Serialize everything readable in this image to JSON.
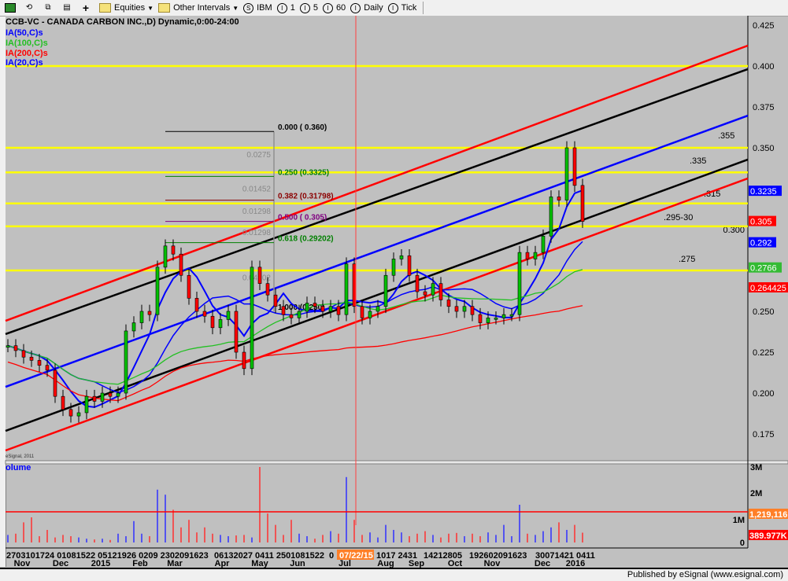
{
  "toolbar": {
    "items": [
      "Equities",
      "Other Intervals",
      "IBM",
      "1",
      "5",
      "60",
      "Daily",
      "Tick"
    ],
    "icons": [
      "link-icon",
      "refresh-icon",
      "copy-icon",
      "properties-icon",
      "plus-icon"
    ]
  },
  "chart_header": {
    "title": "CCB-VC - CANADA CARBON INC.,D) Dynamic,0:00-24:00",
    "studies": [
      {
        "label": "IA(50,C)s",
        "color": "#0000ff"
      },
      {
        "label": "IA(100,C)s",
        "color": "#22c022"
      },
      {
        "label": "IA(200,C)s",
        "color": "#ff0000"
      },
      {
        "label": "IA(20,C)s",
        "color": "#0000ff"
      }
    ],
    "watermark": "eSignal, 2011"
  },
  "chart_data": {
    "type": "candlestick",
    "ylim": [
      0.165,
      0.43
    ],
    "yticks": [
      "0.425",
      "0.400",
      "0.375",
      "0.350",
      "0.300",
      "0.250",
      "0.225",
      "0.200",
      "0.175"
    ],
    "closes": [
      0.229,
      0.226,
      0.222,
      0.22,
      0.217,
      0.214,
      0.198,
      0.19,
      0.186,
      0.188,
      0.198,
      0.195,
      0.2,
      0.198,
      0.2,
      0.238,
      0.243,
      0.25,
      0.248,
      0.277,
      0.29,
      0.285,
      0.272,
      0.258,
      0.25,
      0.247,
      0.24,
      0.245,
      0.25,
      0.225,
      0.215,
      0.277,
      0.267,
      0.26,
      0.253,
      0.248,
      0.246,
      0.25,
      0.255,
      0.253,
      0.25,
      0.253,
      0.248,
      0.279,
      0.253,
      0.246,
      0.25,
      0.253,
      0.272,
      0.282,
      0.284,
      0.272,
      0.262,
      0.26,
      0.267,
      0.257,
      0.253,
      0.25,
      0.253,
      0.248,
      0.243,
      0.246,
      0.246,
      0.248,
      0.248,
      0.286,
      0.282,
      0.286,
      0.296,
      0.32,
      0.318,
      0.35,
      0.327,
      0.305
    ],
    "moving_averages": [
      {
        "name": "MA(20,C)",
        "color": "#0000ff"
      },
      {
        "name": "MA(50,C)",
        "color": "#0000ff"
      },
      {
        "name": "MA(100,C)",
        "color": "#22c022"
      },
      {
        "name": "MA(200,C)",
        "color": "#ff0000"
      }
    ],
    "horizontal_levels": [
      0.4,
      0.35,
      0.335,
      0.316,
      0.302,
      0.275
    ],
    "level_annotations": [
      ".355",
      ".335",
      ".315",
      ".295-30",
      ".275"
    ],
    "trend_channel": [
      {
        "color": "#ff0000",
        "start": 0.2442,
        "end": 0.4125
      },
      {
        "color": "#000000",
        "start": 0.2361,
        "end": 0.3981
      },
      {
        "color": "#0000ff",
        "start": 0.2038,
        "end": 0.3697
      },
      {
        "color": "#000000",
        "start": 0.1769,
        "end": 0.3428
      },
      {
        "color": "#ff0000",
        "start": 0.1649,
        "end": 0.3313
      }
    ],
    "fibonacci": [
      {
        "label": "0.000 ( 0.360)",
        "price": 0.36,
        "color": "#000000",
        "diff": "0.0275"
      },
      {
        "label": "0.250 (0.3325)",
        "price": 0.3325,
        "color": "#008000",
        "diff": "0.01452"
      },
      {
        "label": "0.382 (0.31798)",
        "price": 0.31798,
        "color": "#8b0000",
        "diff": "0.01298"
      },
      {
        "label": "0.500 ( 0.305)",
        "price": 0.305,
        "color": "#800080",
        "diff": "0.01298"
      },
      {
        "label": "0.618 (0.29202)",
        "price": 0.29202,
        "color": "#008000",
        "diff": "0.04202"
      },
      {
        "label": "1.000 (0.250)",
        "price": 0.25,
        "color": "#000000",
        "diff": ""
      }
    ],
    "price_badges": [
      {
        "text": "0.3235",
        "bg": "#0000ff",
        "price": 0.3235
      },
      {
        "text": "0.305",
        "bg": "#ff0000",
        "price": 0.305
      },
      {
        "text": "0.292",
        "bg": "#0000ff",
        "price": 0.292
      },
      {
        "text": "0.2766",
        "bg": "#33bb33",
        "price": 0.2766
      },
      {
        "text": "0.264425",
        "bg": "#ff0000",
        "price": 0.264425
      }
    ],
    "volume": {
      "label": "olume",
      "values_k": [
        300,
        350,
        800,
        1000,
        250,
        500,
        200,
        300,
        250,
        200,
        150,
        120,
        150,
        100,
        350,
        250,
        850,
        350,
        250,
        2100,
        1900,
        1300,
        600,
        900,
        400,
        600,
        350,
        300,
        250,
        280,
        300,
        200,
        3000,
        1150,
        700,
        300,
        900,
        350,
        250,
        150,
        300,
        450,
        350,
        2600,
        900,
        300,
        400,
        200,
        700,
        500,
        400,
        250,
        350,
        450,
        300,
        200,
        350,
        380,
        250,
        350,
        250,
        400,
        300,
        700,
        250,
        1500,
        350,
        300,
        450,
        600,
        800,
        500,
        700,
        390
      ],
      "yticks": [
        "3M",
        "2M",
        "1M",
        "0"
      ],
      "average_line": 1219116,
      "badges": [
        {
          "text": "1,219,116",
          "bg": "#ff7f27"
        },
        {
          "text": "389.977K",
          "bg": "#ff0000"
        }
      ]
    },
    "x_day_labels": [
      "2703101724",
      "01081522",
      "05121926",
      "0209",
      "2302091623",
      "06132027",
      "0411",
      "2501081522",
      "0",
      "1017",
      "2431",
      "14212805",
      "192602091623",
      "30071421",
      "0411"
    ],
    "x_month_labels": [
      "Nov",
      "Dec",
      "2015",
      "Feb",
      "Mar",
      "Apr",
      "May",
      "Jun",
      "Jul",
      "Aug",
      "Sep",
      "Oct",
      "Nov",
      "Dec",
      "2016"
    ],
    "cursor_date": "07/22/15"
  },
  "footer": {
    "text": "Published by eSignal (www.esignal.com)"
  }
}
